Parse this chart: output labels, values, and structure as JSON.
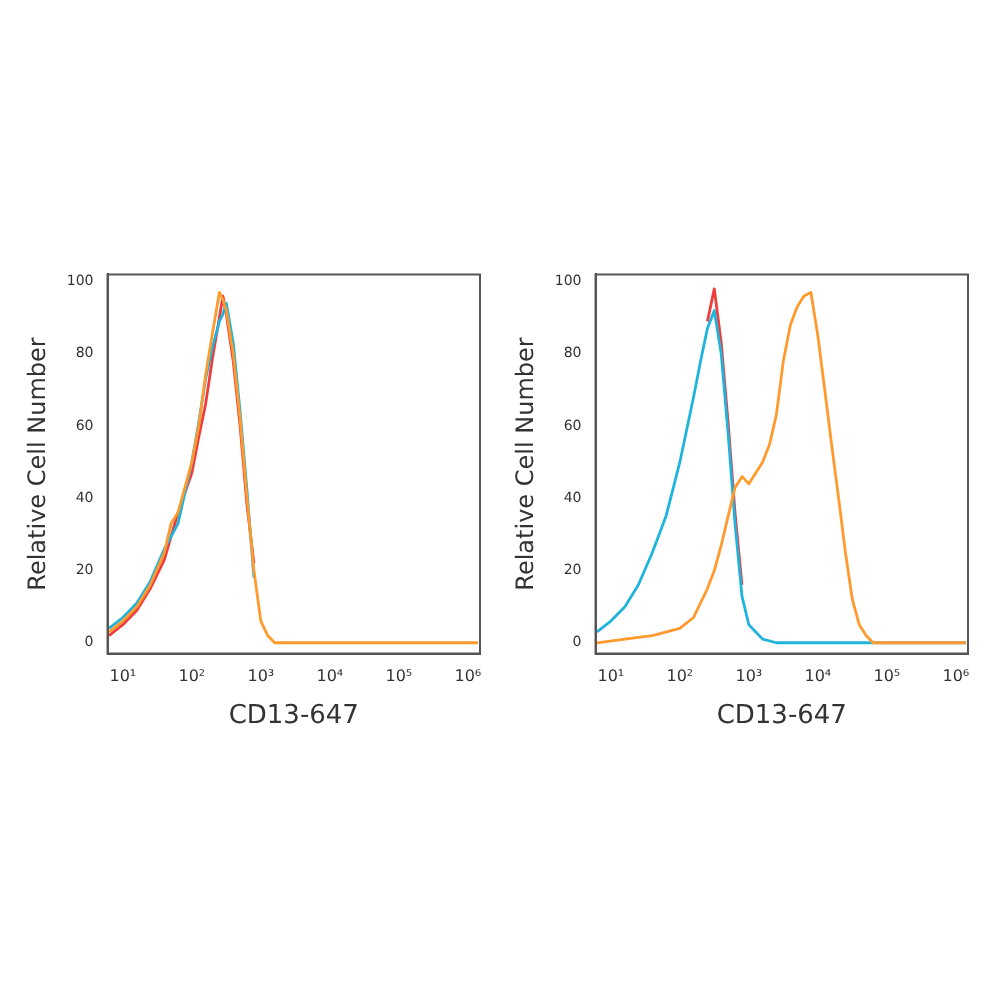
{
  "chart_data": [
    {
      "type": "line",
      "xlabel": "CD13-647",
      "ylabel": "Relative Cell Number",
      "log": "x",
      "xlim": [
        6,
        1500000
      ],
      "ylim": [
        -3,
        102
      ],
      "xticks": [
        {
          "value": 10,
          "label": "10¹"
        },
        {
          "value": 100,
          "label": "10²"
        },
        {
          "value": 1000,
          "label": "10³"
        },
        {
          "value": 10000,
          "label": "10⁴"
        },
        {
          "value": 100000,
          "label": "10⁵"
        },
        {
          "value": 1000000,
          "label": "10⁶"
        }
      ],
      "yticks": [
        0,
        20,
        40,
        60,
        80,
        100
      ],
      "grid": false,
      "legend": false,
      "marker": "none",
      "line_style": "solid",
      "series": [
        {
          "color": "#f03c3c",
          "x": [
            6.3,
            10,
            16,
            25,
            40,
            63,
            100,
            126,
            158,
            200,
            251,
            282,
            316,
            398,
            501,
            631,
            794
          ],
          "values": [
            2,
            5,
            9,
            15,
            23,
            36,
            47,
            57,
            66,
            79,
            90,
            96,
            91,
            78,
            60,
            38,
            22
          ]
        },
        {
          "color": "#1eb4dc",
          "x": [
            6.3,
            10,
            16,
            25,
            40,
            63,
            100,
            126,
            158,
            200,
            251,
            282,
            316,
            398,
            501,
            631,
            794
          ],
          "values": [
            4,
            7,
            11,
            17,
            26,
            33,
            50,
            61,
            73,
            82,
            89,
            91,
            94,
            83,
            64,
            42,
            18
          ]
        },
        {
          "color": "#ff9a2e",
          "x": [
            6.3,
            10,
            16,
            25,
            40,
            50,
            63,
            100,
            126,
            158,
            200,
            251,
            282,
            316,
            398,
            501,
            631,
            794,
            1000,
            1259,
            1585,
            1400000
          ],
          "values": [
            3,
            6,
            10,
            16,
            25,
            33,
            36,
            50,
            60,
            74,
            86,
            97,
            95,
            92,
            80,
            62,
            40,
            20,
            6,
            2,
            0,
            0
          ]
        }
      ]
    },
    {
      "type": "line",
      "xlabel": "CD13-647",
      "ylabel": "Relative Cell Number",
      "log": "x",
      "xlim": [
        6,
        1500000
      ],
      "ylim": [
        -3,
        102
      ],
      "xticks": [
        {
          "value": 10,
          "label": "10¹"
        },
        {
          "value": 100,
          "label": "10²"
        },
        {
          "value": 1000,
          "label": "10³"
        },
        {
          "value": 10000,
          "label": "10⁴"
        },
        {
          "value": 100000,
          "label": "10⁵"
        },
        {
          "value": 1000000,
          "label": "10⁶"
        }
      ],
      "yticks": [
        0,
        20,
        40,
        60,
        80,
        100
      ],
      "grid": false,
      "legend": false,
      "marker": "none",
      "line_style": "solid",
      "series": [
        {
          "color": "#f03c3c",
          "x": [
            251,
            316,
            398,
            501,
            631,
            794
          ],
          "values": [
            89,
            98,
            83,
            61,
            36,
            16
          ]
        },
        {
          "color": "#1eb4dc",
          "x": [
            6.3,
            10,
            16,
            25,
            40,
            63,
            100,
            158,
            200,
            251,
            316,
            398,
            501,
            631,
            794,
            1000,
            1585,
            2512,
            1400000
          ],
          "values": [
            3,
            6,
            10,
            16,
            25,
            35,
            50,
            68,
            78,
            87,
            92,
            80,
            58,
            33,
            13,
            5,
            1,
            0,
            0
          ]
        },
        {
          "color": "#ff9a2e",
          "x": [
            6.3,
            16,
            40,
            100,
            158,
            251,
            316,
            398,
            501,
            631,
            800,
            1000,
            1260,
            1580,
            2000,
            2500,
            3160,
            4000,
            5000,
            6300,
            7940,
            10000,
            12600,
            15800,
            20000,
            25100,
            31600,
            39800,
            50100,
            63100,
            1400000
          ],
          "values": [
            0,
            1,
            2,
            4,
            7,
            15,
            20,
            27,
            35,
            43,
            46,
            44,
            47,
            50,
            55,
            63,
            78,
            88,
            93,
            96,
            97,
            85,
            70,
            55,
            40,
            25,
            12,
            5,
            2,
            0,
            0
          ]
        }
      ]
    }
  ]
}
